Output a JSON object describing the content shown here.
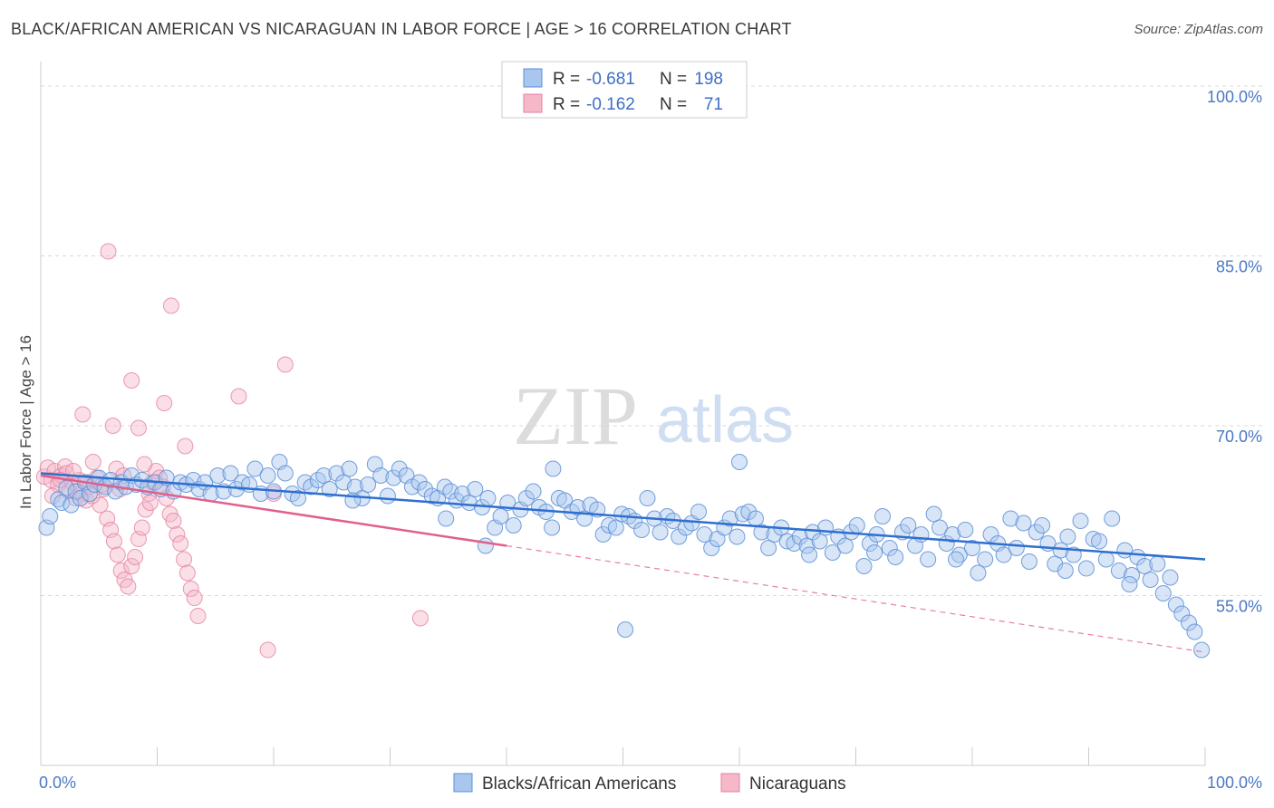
{
  "title": "BLACK/AFRICAN AMERICAN VS NICARAGUAN IN LABOR FORCE | AGE > 16 CORRELATION CHART",
  "source": "Source: ZipAtlas.com",
  "watermark": {
    "zip": "ZIP",
    "atlas": "atlas"
  },
  "colors": {
    "blue_fill": "#a9c6ee",
    "blue_stroke": "#5b8fd6",
    "blue_line": "#2f6fd0",
    "pink_fill": "#f5b8c9",
    "pink_stroke": "#e6819f",
    "pink_line": "#e0608a",
    "grid": "#d8d8d8",
    "tick_text": "#4a78c4"
  },
  "legend": {
    "rows": [
      {
        "r_label": "R = ",
        "r_value": "-0.681",
        "n_label": "N = ",
        "n_value": "198"
      },
      {
        "r_label": "R = ",
        "r_value": "-0.162",
        "n_label": "N = ",
        "n_value": "71"
      }
    ]
  },
  "chart_data": {
    "type": "scatter",
    "title": "BLACK/AFRICAN AMERICAN VS NICARAGUAN IN LABOR FORCE | AGE > 16 CORRELATION CHART",
    "xlabel": "",
    "ylabel": "In Labor Force | Age > 16",
    "xlim": [
      0,
      100
    ],
    "ylim": [
      40,
      102
    ],
    "x_tick_labels": [
      "0.0%",
      "100.0%"
    ],
    "y_ticks": [
      55,
      70,
      85,
      100
    ],
    "y_tick_labels": [
      "55.0%",
      "70.0%",
      "85.0%",
      "100.0%"
    ],
    "grid": true,
    "legend_position": "top-center",
    "series": [
      {
        "name": "Blacks/African Americans",
        "color": "#5b8fd6",
        "r": -0.681,
        "n": 198,
        "trend": {
          "x": [
            0,
            100
          ],
          "y": [
            65.8,
            58.2
          ]
        },
        "points": [
          [
            0.5,
            61.0
          ],
          [
            0.8,
            62.0
          ],
          [
            1.5,
            63.5
          ],
          [
            1.8,
            63.2
          ],
          [
            2.2,
            64.5
          ],
          [
            2.6,
            63.0
          ],
          [
            3.0,
            64.2
          ],
          [
            3.4,
            63.6
          ],
          [
            3.8,
            65.0
          ],
          [
            4.2,
            64.0
          ],
          [
            4.6,
            64.8
          ],
          [
            5.0,
            65.4
          ],
          [
            5.5,
            64.6
          ],
          [
            6.0,
            65.2
          ],
          [
            6.4,
            64.2
          ],
          [
            6.9,
            65.0
          ],
          [
            7.3,
            64.6
          ],
          [
            7.8,
            65.6
          ],
          [
            8.2,
            64.8
          ],
          [
            8.7,
            65.2
          ],
          [
            9.2,
            64.6
          ],
          [
            9.8,
            65.0
          ],
          [
            10.3,
            64.4
          ],
          [
            10.8,
            65.4
          ],
          [
            11.4,
            64.2
          ],
          [
            12.0,
            65.0
          ],
          [
            12.5,
            64.8
          ],
          [
            13.1,
            65.2
          ],
          [
            13.6,
            64.4
          ],
          [
            14.1,
            65.0
          ],
          [
            14.6,
            64.0
          ],
          [
            15.2,
            65.6
          ],
          [
            15.7,
            64.2
          ],
          [
            16.3,
            65.8
          ],
          [
            16.8,
            64.4
          ],
          [
            17.3,
            65.0
          ],
          [
            17.9,
            64.8
          ],
          [
            18.4,
            66.2
          ],
          [
            18.9,
            64.0
          ],
          [
            19.5,
            65.6
          ],
          [
            20.0,
            64.2
          ],
          [
            20.5,
            66.8
          ],
          [
            21.0,
            65.8
          ],
          [
            21.6,
            64.0
          ],
          [
            22.1,
            63.6
          ],
          [
            22.7,
            65.0
          ],
          [
            23.2,
            64.6
          ],
          [
            23.8,
            65.2
          ],
          [
            24.3,
            65.6
          ],
          [
            24.8,
            64.4
          ],
          [
            25.4,
            65.8
          ],
          [
            26.0,
            65.0
          ],
          [
            26.5,
            66.2
          ],
          [
            27.0,
            64.6
          ],
          [
            27.6,
            63.6
          ],
          [
            28.1,
            64.8
          ],
          [
            28.7,
            66.6
          ],
          [
            29.2,
            65.6
          ],
          [
            29.8,
            63.8
          ],
          [
            30.3,
            65.4
          ],
          [
            30.8,
            66.2
          ],
          [
            31.4,
            65.6
          ],
          [
            31.9,
            64.6
          ],
          [
            32.5,
            65.0
          ],
          [
            33.0,
            64.4
          ],
          [
            33.6,
            63.8
          ],
          [
            34.1,
            63.6
          ],
          [
            34.7,
            64.6
          ],
          [
            35.2,
            64.2
          ],
          [
            35.7,
            63.4
          ],
          [
            36.2,
            64.0
          ],
          [
            36.8,
            63.2
          ],
          [
            37.3,
            64.4
          ],
          [
            37.9,
            62.8
          ],
          [
            38.4,
            63.6
          ],
          [
            39.0,
            61.0
          ],
          [
            39.5,
            62.0
          ],
          [
            40.1,
            63.2
          ],
          [
            40.6,
            61.2
          ],
          [
            41.2,
            62.6
          ],
          [
            41.7,
            63.6
          ],
          [
            42.3,
            64.2
          ],
          [
            42.8,
            62.8
          ],
          [
            43.4,
            62.4
          ],
          [
            43.9,
            61.0
          ],
          [
            44.5,
            63.6
          ],
          [
            45.0,
            63.4
          ],
          [
            45.6,
            62.4
          ],
          [
            46.1,
            62.8
          ],
          [
            46.7,
            61.8
          ],
          [
            47.2,
            63.0
          ],
          [
            47.8,
            62.6
          ],
          [
            48.3,
            60.4
          ],
          [
            48.8,
            61.2
          ],
          [
            49.4,
            61.0
          ],
          [
            49.9,
            62.2
          ],
          [
            50.5,
            62.0
          ],
          [
            51.0,
            61.6
          ],
          [
            51.6,
            60.8
          ],
          [
            52.1,
            63.6
          ],
          [
            52.7,
            61.8
          ],
          [
            53.2,
            60.6
          ],
          [
            53.8,
            62.0
          ],
          [
            54.3,
            61.6
          ],
          [
            54.8,
            60.2
          ],
          [
            55.4,
            61.0
          ],
          [
            55.9,
            61.4
          ],
          [
            56.5,
            62.4
          ],
          [
            57.0,
            60.4
          ],
          [
            57.6,
            59.2
          ],
          [
            58.1,
            60.0
          ],
          [
            58.7,
            61.0
          ],
          [
            59.2,
            61.8
          ],
          [
            59.8,
            60.2
          ],
          [
            60.3,
            62.2
          ],
          [
            60.8,
            62.4
          ],
          [
            61.4,
            61.8
          ],
          [
            61.9,
            60.6
          ],
          [
            62.5,
            59.2
          ],
          [
            63.0,
            60.4
          ],
          [
            63.6,
            61.0
          ],
          [
            64.1,
            59.8
          ],
          [
            64.7,
            59.6
          ],
          [
            65.2,
            60.2
          ],
          [
            65.8,
            59.4
          ],
          [
            66.3,
            60.6
          ],
          [
            66.9,
            59.8
          ],
          [
            67.4,
            61.0
          ],
          [
            68.0,
            58.8
          ],
          [
            68.5,
            60.2
          ],
          [
            69.1,
            59.4
          ],
          [
            69.6,
            60.6
          ],
          [
            70.1,
            61.2
          ],
          [
            70.7,
            57.6
          ],
          [
            71.2,
            59.6
          ],
          [
            71.8,
            60.4
          ],
          [
            72.3,
            62.0
          ],
          [
            72.9,
            59.2
          ],
          [
            73.4,
            58.4
          ],
          [
            74.0,
            60.6
          ],
          [
            74.5,
            61.2
          ],
          [
            75.1,
            59.4
          ],
          [
            75.6,
            60.4
          ],
          [
            76.2,
            58.2
          ],
          [
            76.7,
            62.2
          ],
          [
            77.2,
            61.0
          ],
          [
            77.8,
            59.6
          ],
          [
            78.3,
            60.4
          ],
          [
            78.9,
            58.6
          ],
          [
            79.4,
            60.8
          ],
          [
            80.0,
            59.2
          ],
          [
            80.5,
            57.0
          ],
          [
            81.1,
            58.2
          ],
          [
            81.6,
            60.4
          ],
          [
            82.2,
            59.6
          ],
          [
            82.7,
            58.6
          ],
          [
            83.3,
            61.8
          ],
          [
            83.8,
            59.2
          ],
          [
            84.4,
            61.4
          ],
          [
            84.9,
            58.0
          ],
          [
            85.5,
            60.6
          ],
          [
            86.0,
            61.2
          ],
          [
            86.5,
            59.6
          ],
          [
            87.1,
            57.8
          ],
          [
            87.6,
            59.0
          ],
          [
            88.2,
            60.2
          ],
          [
            88.7,
            58.6
          ],
          [
            89.3,
            61.6
          ],
          [
            89.8,
            57.4
          ],
          [
            90.4,
            60.0
          ],
          [
            90.9,
            59.8
          ],
          [
            91.5,
            58.2
          ],
          [
            92.0,
            61.8
          ],
          [
            92.6,
            57.2
          ],
          [
            93.1,
            59.0
          ],
          [
            93.7,
            56.8
          ],
          [
            94.2,
            58.4
          ],
          [
            94.8,
            57.6
          ],
          [
            95.3,
            56.4
          ],
          [
            95.9,
            57.8
          ],
          [
            96.4,
            55.2
          ],
          [
            97.0,
            56.6
          ],
          [
            97.5,
            54.2
          ],
          [
            98.0,
            53.4
          ],
          [
            98.6,
            52.6
          ],
          [
            99.1,
            51.8
          ],
          [
            99.7,
            50.2
          ],
          [
            38.2,
            59.4
          ],
          [
            50.2,
            52.0
          ],
          [
            60.0,
            66.8
          ],
          [
            78.6,
            58.2
          ],
          [
            88.0,
            57.2
          ],
          [
            93.5,
            56.0
          ],
          [
            66.0,
            58.6
          ],
          [
            44.0,
            66.2
          ],
          [
            26.8,
            63.4
          ],
          [
            34.8,
            61.8
          ],
          [
            71.6,
            58.8
          ]
        ]
      },
      {
        "name": "Nicaraguans",
        "color": "#e6819f",
        "r": -0.162,
        "n": 71,
        "trend": {
          "x": [
            0,
            40
          ],
          "y": [
            65.6,
            59.4
          ]
        },
        "trend_extended": {
          "x": [
            40,
            100
          ],
          "y": [
            59.4,
            50.0
          ]
        },
        "points": [
          [
            0.3,
            65.5
          ],
          [
            0.6,
            66.3
          ],
          [
            0.9,
            65.2
          ],
          [
            1.2,
            66.0
          ],
          [
            1.5,
            64.8
          ],
          [
            1.8,
            65.6
          ],
          [
            2.1,
            66.4
          ],
          [
            2.4,
            64.2
          ],
          [
            2.7,
            65.0
          ],
          [
            3.0,
            63.6
          ],
          [
            3.3,
            65.2
          ],
          [
            3.6,
            64.0
          ],
          [
            3.9,
            63.4
          ],
          [
            4.2,
            64.6
          ],
          [
            4.5,
            66.8
          ],
          [
            4.8,
            65.4
          ],
          [
            5.1,
            63.0
          ],
          [
            5.4,
            64.4
          ],
          [
            5.7,
            61.8
          ],
          [
            6.0,
            60.8
          ],
          [
            6.3,
            59.8
          ],
          [
            6.6,
            58.6
          ],
          [
            6.9,
            57.2
          ],
          [
            7.2,
            56.4
          ],
          [
            7.5,
            55.8
          ],
          [
            7.8,
            57.6
          ],
          [
            8.1,
            58.4
          ],
          [
            8.4,
            60.0
          ],
          [
            8.7,
            61.0
          ],
          [
            9.0,
            62.6
          ],
          [
            9.3,
            64.0
          ],
          [
            9.6,
            65.0
          ],
          [
            9.9,
            66.0
          ],
          [
            10.2,
            65.4
          ],
          [
            10.5,
            64.6
          ],
          [
            10.8,
            63.6
          ],
          [
            11.1,
            62.2
          ],
          [
            11.4,
            61.6
          ],
          [
            11.7,
            60.4
          ],
          [
            12.0,
            59.6
          ],
          [
            12.3,
            58.2
          ],
          [
            12.6,
            57.0
          ],
          [
            12.9,
            55.6
          ],
          [
            13.2,
            54.8
          ],
          [
            13.5,
            53.2
          ],
          [
            3.6,
            71.0
          ],
          [
            5.8,
            85.4
          ],
          [
            11.2,
            80.6
          ],
          [
            21.0,
            75.4
          ],
          [
            7.8,
            74.0
          ],
          [
            10.6,
            72.0
          ],
          [
            17.0,
            72.6
          ],
          [
            6.2,
            70.0
          ],
          [
            8.4,
            69.8
          ],
          [
            12.4,
            68.2
          ],
          [
            20.0,
            64.0
          ],
          [
            19.5,
            50.2
          ],
          [
            32.6,
            53.0
          ],
          [
            2.2,
            65.8
          ],
          [
            4.0,
            65.0
          ],
          [
            6.5,
            66.2
          ],
          [
            8.9,
            66.6
          ],
          [
            1.0,
            63.8
          ],
          [
            3.2,
            64.2
          ],
          [
            5.3,
            64.8
          ],
          [
            7.1,
            65.6
          ],
          [
            9.4,
            63.2
          ],
          [
            2.8,
            66.0
          ],
          [
            1.7,
            65.2
          ],
          [
            4.4,
            63.8
          ],
          [
            6.8,
            64.4
          ]
        ]
      }
    ]
  }
}
